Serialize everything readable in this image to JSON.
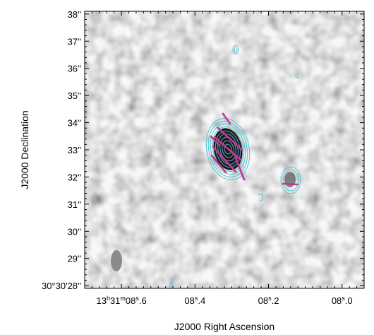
{
  "figure": {
    "xlabel": "J2000 Right Ascension",
    "ylabel": "J2000 Declination",
    "y_ticks": [
      {
        "value": 38,
        "label": "38''"
      },
      {
        "value": 37,
        "label": "37''"
      },
      {
        "value": 36,
        "label": "36''"
      },
      {
        "value": 35,
        "label": "35''"
      },
      {
        "value": 34,
        "label": "34''"
      },
      {
        "value": 33,
        "label": "33''"
      },
      {
        "value": 32,
        "label": "32''"
      },
      {
        "value": 31,
        "label": "31''"
      },
      {
        "value": 30,
        "label": "30''"
      },
      {
        "value": 29,
        "label": "29''"
      },
      {
        "value": 28,
        "label": "30°30'28''"
      }
    ],
    "x_ticks": [
      {
        "value": 8.6,
        "label": "13h31m08s.6"
      },
      {
        "value": 8.4,
        "label": "08s.4"
      },
      {
        "value": 8.2,
        "label": "08s.2"
      },
      {
        "value": 8.0,
        "label": "08s.0"
      }
    ],
    "x_range_seconds": [
      8.7,
      7.94
    ],
    "y_range_arcsec": [
      27.9,
      38.1
    ],
    "colors": {
      "contour": "#4fc6d3",
      "polarization_vector": "#c2389a",
      "background_map": "#d9d9d9",
      "beam": "#8a8a8a",
      "frame": "#000000"
    },
    "sources": [
      {
        "name": "main-source",
        "ra_s": 8.29,
        "dec_as": 32.95
      },
      {
        "name": "secondary-source",
        "ra_s": 8.102,
        "dec_as": 31.75
      }
    ],
    "beam": {
      "ra_s": 8.595,
      "dec_as": 28.75
    }
  }
}
